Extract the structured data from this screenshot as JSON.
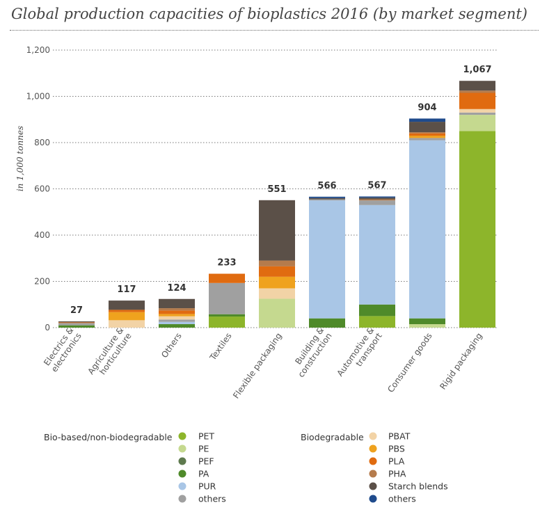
{
  "title": "Global production capacities of bioplastics 2016 (by market segment)",
  "chart_data": {
    "type": "bar",
    "stacked": true,
    "title": "Global production capacities of bioplastics 2016 (by market segment)",
    "ylabel": "in 1,000 tonnes",
    "xlabel": "",
    "ylim": [
      0,
      1200
    ],
    "yticks": [
      0,
      200,
      400,
      600,
      800,
      1000,
      1200
    ],
    "ytick_labels": [
      "0",
      "200",
      "400",
      "600",
      "800",
      "1,000",
      "1,200"
    ],
    "grid": "horizontal dotted",
    "categories": [
      "Electrics & electronics",
      "Agriculture & horticulture",
      "Others",
      "Textiles",
      "Flexible packaging",
      "Building & construction",
      "Automotive & transport",
      "Consumer goods",
      "Rigid packaging"
    ],
    "category_lines": [
      [
        "Electrics &",
        "electronics"
      ],
      [
        "Agriculture &",
        "horticulture"
      ],
      [
        "Others"
      ],
      [
        "Textiles"
      ],
      [
        "Flexible packaging"
      ],
      [
        "Building &",
        "construction"
      ],
      [
        "Automotive &",
        "transport"
      ],
      [
        "Consumer goods"
      ],
      [
        "Rigid packaging"
      ]
    ],
    "totals": [
      27,
      117,
      124,
      233,
      551,
      566,
      567,
      904,
      1067
    ],
    "total_labels": [
      "27",
      "117",
      "124",
      "233",
      "551",
      "566",
      "567",
      "904",
      "1,067"
    ],
    "series": [
      {
        "name": "PET",
        "group": "Bio-based/non-biodegradable",
        "color": "#8db52b",
        "values": [
          0,
          0,
          0,
          48,
          0,
          0,
          50,
          0,
          850
        ]
      },
      {
        "name": "PE",
        "group": "Bio-based/non-biodegradable",
        "color": "#c5d98f",
        "values": [
          0,
          0,
          0,
          0,
          125,
          0,
          0,
          15,
          70
        ]
      },
      {
        "name": "PEF",
        "group": "Bio-based/non-biodegradable",
        "color": "#5e7a4e",
        "values": [
          0,
          0,
          0,
          0,
          0,
          0,
          0,
          0,
          0
        ]
      },
      {
        "name": "PA",
        "group": "Bio-based/non-biodegradable",
        "color": "#4f8a2a",
        "values": [
          10,
          0,
          15,
          10,
          0,
          40,
          50,
          25,
          0
        ]
      },
      {
        "name": "PUR",
        "group": "Bio-based/non-biodegradable",
        "color": "#a9c6e6",
        "values": [
          0,
          0,
          10,
          0,
          0,
          510,
          430,
          770,
          0
        ]
      },
      {
        "name": "others",
        "group": "Bio-based/non-biodegradable",
        "color": "#a0a0a0",
        "values": [
          10,
          0,
          10,
          135,
          0,
          5,
          20,
          10,
          10
        ]
      },
      {
        "name": "PBAT",
        "group": "Biodegradable",
        "color": "#f2d3a6",
        "values": [
          0,
          32,
          14,
          0,
          45,
          0,
          0,
          0,
          15
        ]
      },
      {
        "name": "PBS",
        "group": "Biodegradable",
        "color": "#efa21e",
        "values": [
          0,
          35,
          10,
          0,
          50,
          0,
          0,
          10,
          0
        ]
      },
      {
        "name": "PLA",
        "group": "Biodegradable",
        "color": "#e06b10",
        "values": [
          3,
          10,
          15,
          40,
          45,
          0,
          0,
          10,
          70
        ]
      },
      {
        "name": "PHA",
        "group": "Biodegradable",
        "color": "#b57b4c",
        "values": [
          0,
          0,
          10,
          0,
          25,
          0,
          5,
          5,
          10
        ]
      },
      {
        "name": "Starch blends",
        "group": "Biodegradable",
        "color": "#5b5048",
        "values": [
          4,
          40,
          40,
          0,
          261,
          5,
          7,
          45,
          42
        ]
      },
      {
        "name": "others",
        "group": "Biodegradable",
        "color": "#1f4b8c",
        "values": [
          0,
          0,
          0,
          0,
          0,
          6,
          5,
          14,
          0
        ]
      }
    ],
    "legend": {
      "placement": "bottom",
      "groups": [
        {
          "title": "Bio-based/non-biodegradable",
          "items": [
            0,
            1,
            2,
            3,
            4,
            5
          ]
        },
        {
          "title": "Biodegradable",
          "items": [
            6,
            7,
            8,
            9,
            10,
            11
          ]
        }
      ]
    }
  }
}
